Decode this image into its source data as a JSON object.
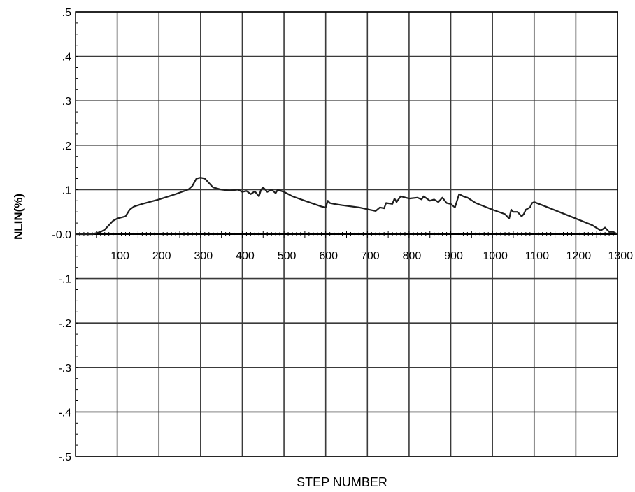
{
  "chart_data": {
    "type": "line",
    "xlabel": "STEP NUMBER",
    "ylabel": "NLIN(%)",
    "xlim": [
      0,
      1300
    ],
    "ylim": [
      -0.5,
      0.5
    ],
    "grid": true,
    "x_ticks": [
      100,
      200,
      300,
      400,
      500,
      600,
      700,
      800,
      900,
      1000,
      1100,
      1200,
      1300
    ],
    "x_tick_labels": [
      "100",
      "200",
      "300",
      "400",
      "500",
      "600",
      "700",
      "800",
      "900",
      "1000",
      "1100",
      "1200",
      "1300"
    ],
    "y_ticks": [
      0.5,
      0.4,
      0.3,
      0.2,
      0.1,
      0.0,
      -0.1,
      -0.2,
      -0.3,
      -0.4,
      -0.5
    ],
    "y_tick_labels": [
      ".5",
      ".4",
      ".3",
      ".2",
      ".1",
      "-0.0",
      "-.1",
      "-.2",
      "-.3",
      "-.4",
      "-.5"
    ],
    "colors": {
      "line": "#1e1e1e",
      "grid": "#3a3a3a",
      "axis": "#000000"
    },
    "series": [
      {
        "x": [
          0,
          40,
          60,
          70,
          80,
          90,
          100,
          120,
          130,
          140,
          160,
          200,
          240,
          270,
          280,
          290,
          300,
          310,
          320,
          330,
          350,
          370,
          390,
          400,
          410,
          420,
          430,
          440,
          445,
          450,
          455,
          460,
          470,
          480,
          485,
          490,
          500,
          520,
          550,
          590,
          600,
          605,
          610,
          620,
          640,
          680,
          720,
          730,
          740,
          745,
          760,
          765,
          770,
          780,
          800,
          820,
          830,
          835,
          850,
          860,
          870,
          880,
          890,
          900,
          910,
          920,
          930,
          940,
          960,
          1000,
          1030,
          1040,
          1045,
          1050,
          1060,
          1070,
          1075,
          1080,
          1090,
          1095,
          1100,
          1120,
          1160,
          1200,
          1240,
          1260,
          1270,
          1280,
          1290,
          1300
        ],
        "y": [
          0.0,
          0.0,
          0.005,
          0.01,
          0.02,
          0.03,
          0.035,
          0.04,
          0.055,
          0.062,
          0.068,
          0.078,
          0.09,
          0.1,
          0.108,
          0.125,
          0.127,
          0.125,
          0.115,
          0.105,
          0.1,
          0.098,
          0.1,
          0.095,
          0.097,
          0.09,
          0.096,
          0.085,
          0.1,
          0.105,
          0.1,
          0.095,
          0.1,
          0.092,
          0.1,
          0.098,
          0.095,
          0.085,
          0.075,
          0.062,
          0.06,
          0.075,
          0.07,
          0.068,
          0.065,
          0.06,
          0.052,
          0.06,
          0.058,
          0.07,
          0.068,
          0.08,
          0.072,
          0.085,
          0.08,
          0.082,
          0.078,
          0.085,
          0.075,
          0.078,
          0.072,
          0.082,
          0.07,
          0.068,
          0.06,
          0.09,
          0.085,
          0.082,
          0.07,
          0.055,
          0.045,
          0.035,
          0.055,
          0.05,
          0.05,
          0.04,
          0.045,
          0.055,
          0.06,
          0.07,
          0.072,
          0.065,
          0.05,
          0.035,
          0.02,
          0.008,
          0.015,
          0.005,
          0.005,
          0.0
        ]
      }
    ]
  }
}
